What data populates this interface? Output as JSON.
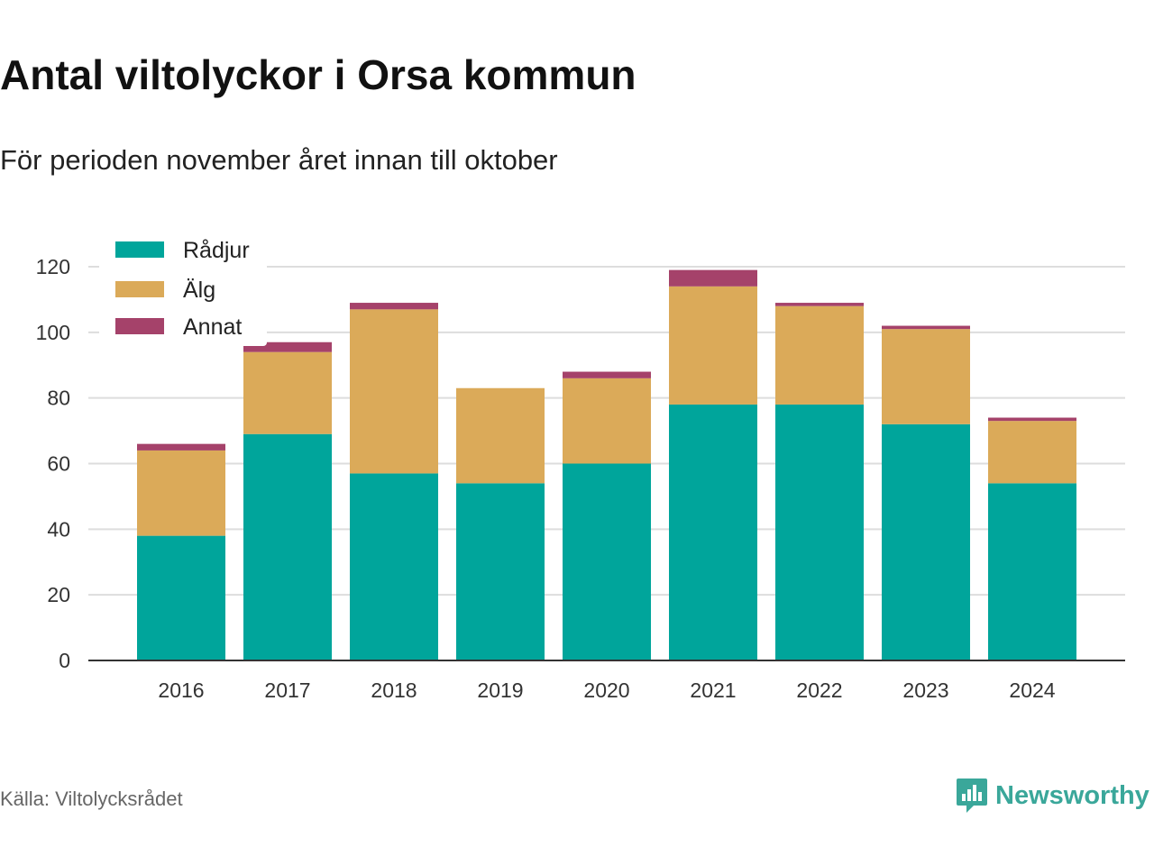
{
  "chart_data": {
    "type": "bar",
    "stacked": true,
    "title": "Antal viltolyckor i Orsa kommun",
    "subtitle": "För perioden november året innan till oktober",
    "categories": [
      "2016",
      "2017",
      "2018",
      "2019",
      "2020",
      "2021",
      "2022",
      "2023",
      "2024"
    ],
    "series": [
      {
        "name": "Rådjur",
        "color": "#00a59b",
        "values": [
          38,
          69,
          57,
          54,
          60,
          78,
          78,
          72,
          54
        ]
      },
      {
        "name": "Älg",
        "color": "#dbaa59",
        "values": [
          26,
          25,
          50,
          29,
          26,
          36,
          30,
          29,
          19
        ]
      },
      {
        "name": "Annat",
        "color": "#a5426a",
        "values": [
          2,
          3,
          2,
          0,
          2,
          5,
          1,
          1,
          1
        ]
      }
    ],
    "ylim": [
      0,
      120
    ],
    "yticks": [
      0,
      20,
      40,
      60,
      80,
      100,
      120
    ],
    "grid": true,
    "legend_position": "top-left"
  },
  "footer": {
    "source": "Källa: Viltolycksrådet",
    "brand": "Newsworthy"
  },
  "icons": {
    "brand_icon": "newsworthy-logo-icon"
  }
}
